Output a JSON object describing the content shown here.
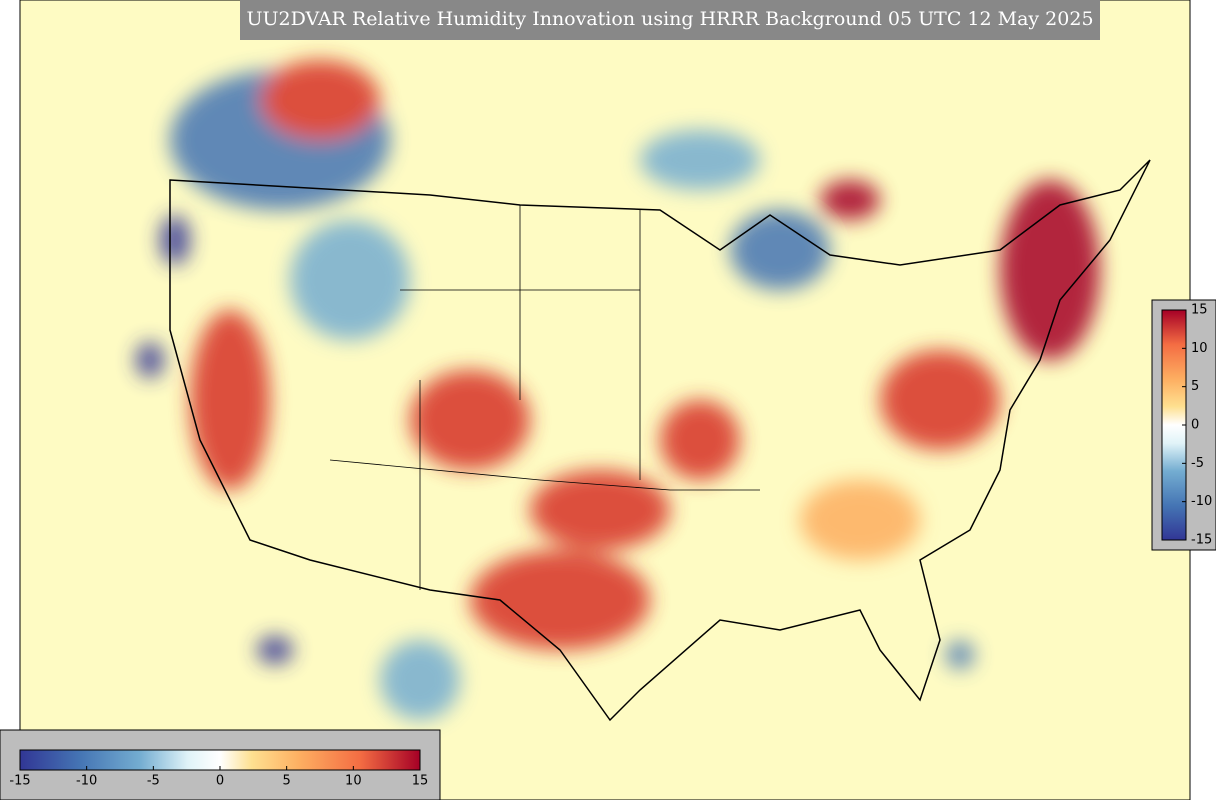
{
  "title": "UU2DVAR Relative Humidity Innovation using HRRR Background 05 UTC 12 May 2025",
  "colorbar_horizontal": {
    "range": [
      -15,
      15
    ],
    "ticks": [
      -15,
      -10,
      -5,
      0,
      5,
      10,
      15
    ]
  },
  "colorbar_vertical": {
    "range": [
      -15,
      15
    ],
    "ticks": [
      15,
      10,
      5,
      0,
      -5,
      -10,
      -15
    ]
  }
}
